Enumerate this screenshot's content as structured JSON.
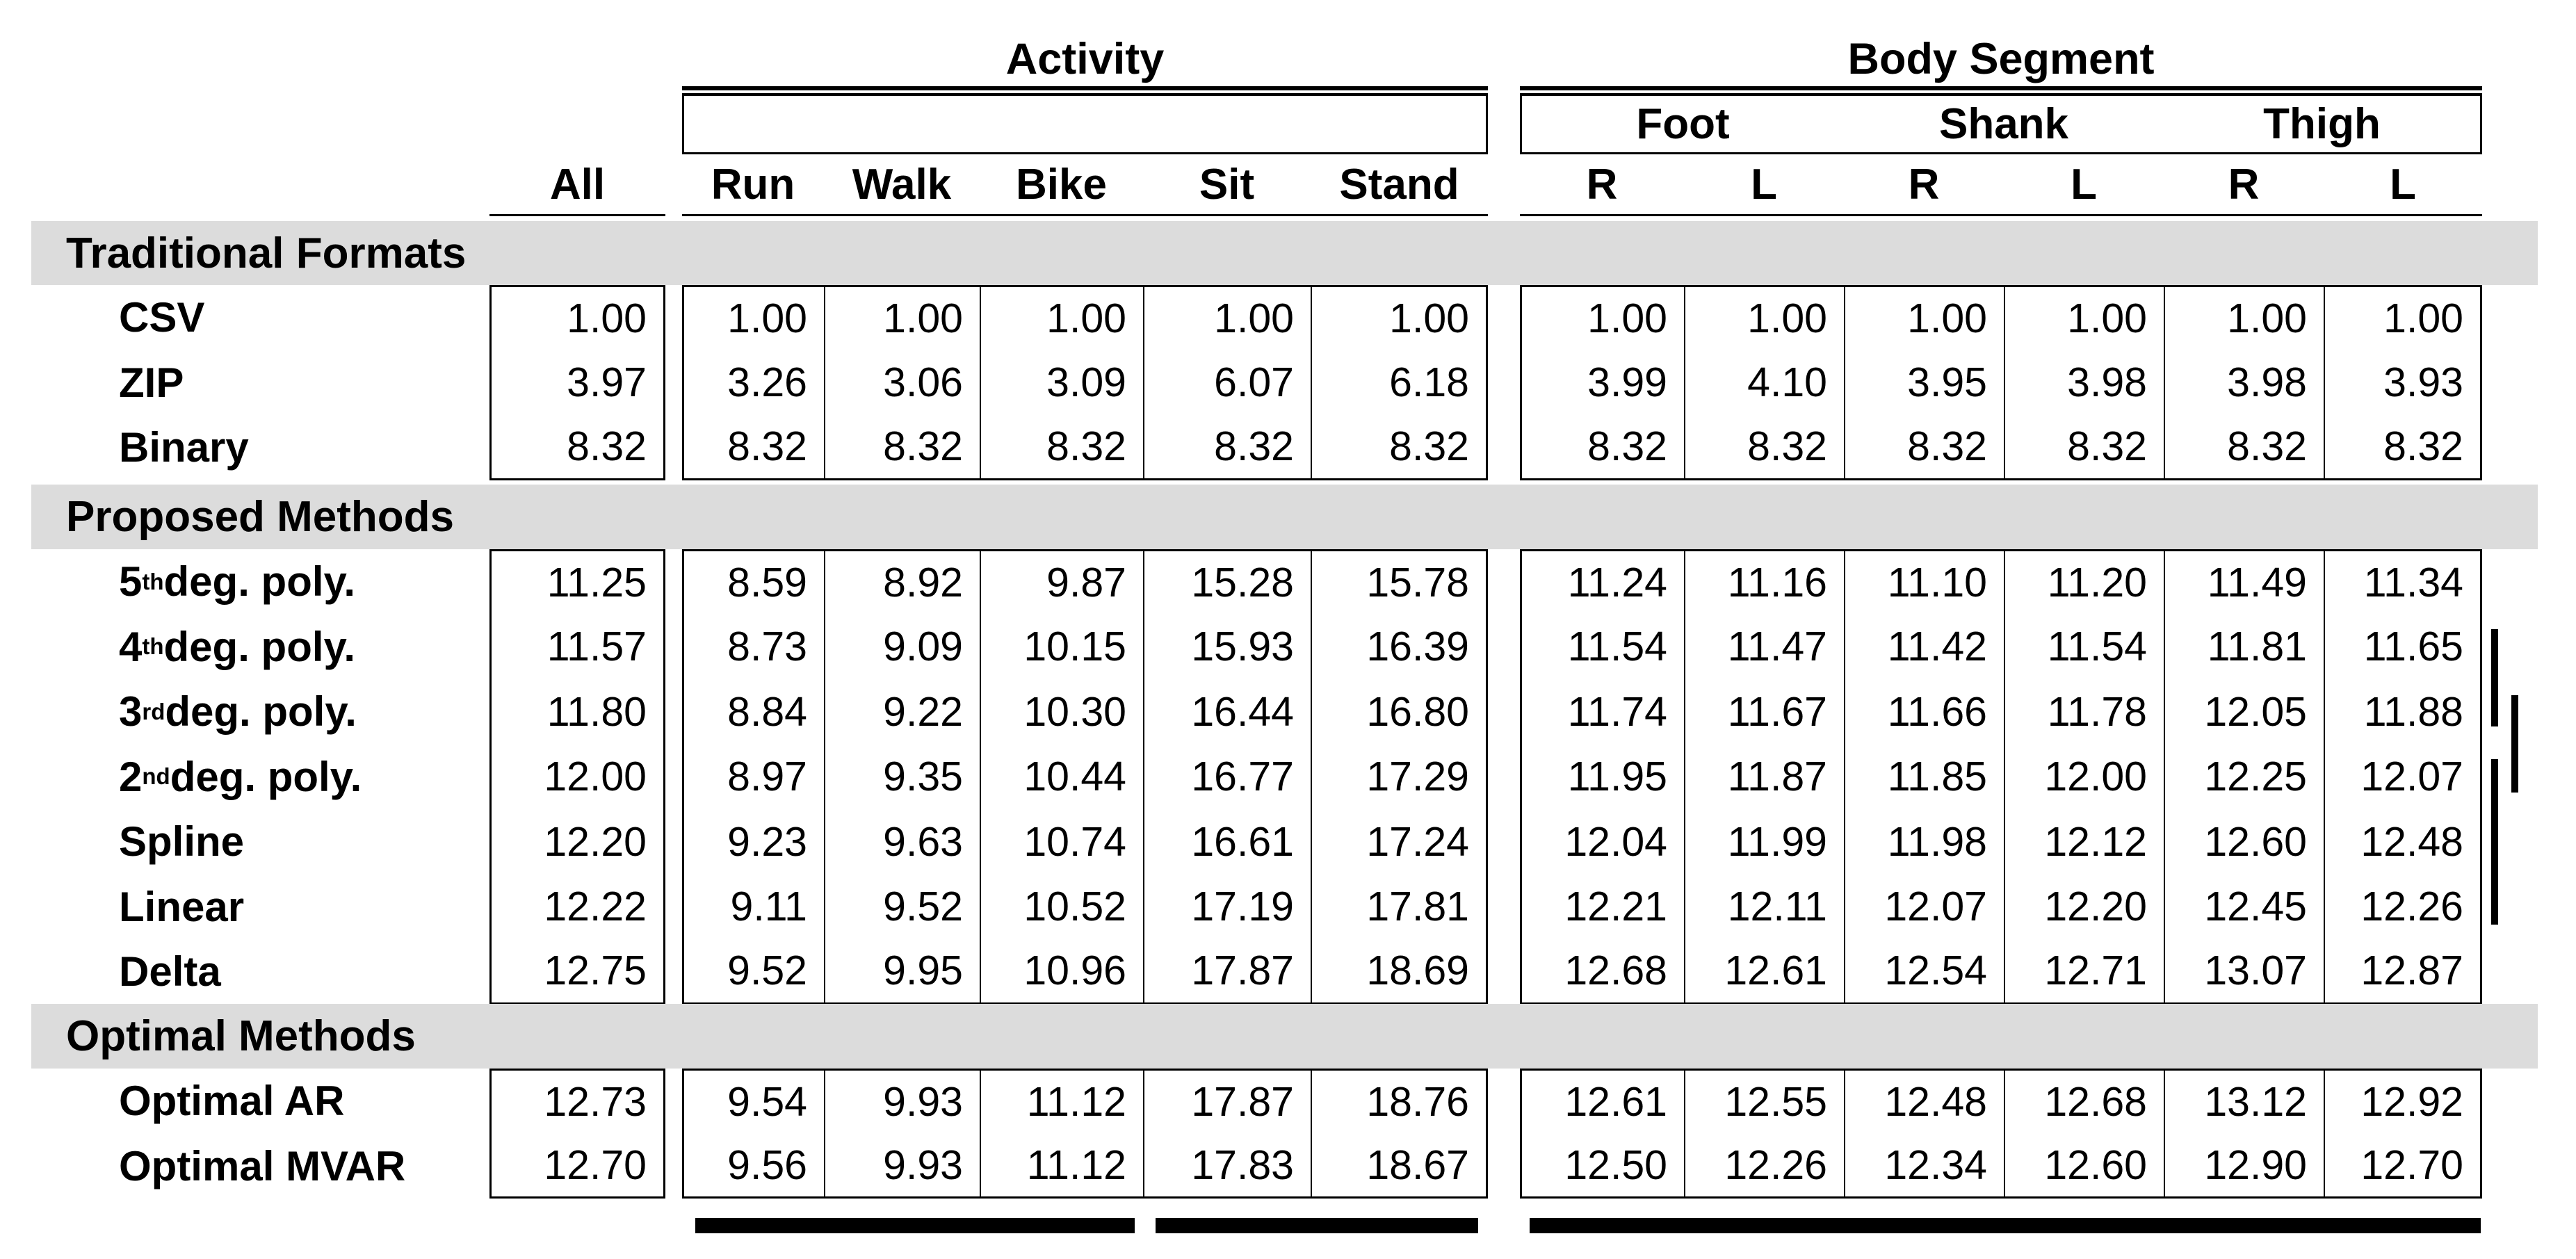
{
  "table": {
    "groups": {
      "activity": "Activity",
      "body_segment": "Body Segment"
    },
    "subgroups": [
      "Foot",
      "Shank",
      "Thigh"
    ],
    "columns": [
      "All",
      "Run",
      "Walk",
      "Bike",
      "Sit",
      "Stand",
      "R",
      "L",
      "R",
      "L",
      "R",
      "L"
    ],
    "sections": [
      {
        "header": "Traditional Formats",
        "rows": [
          {
            "label": {
              "base": "CSV",
              "sup": "",
              "rest": ""
            },
            "values": [
              "1.00",
              "1.00",
              "1.00",
              "1.00",
              "1.00",
              "1.00",
              "1.00",
              "1.00",
              "1.00",
              "1.00",
              "1.00",
              "1.00"
            ]
          },
          {
            "label": {
              "base": "ZIP",
              "sup": "",
              "rest": ""
            },
            "values": [
              "3.97",
              "3.26",
              "3.06",
              "3.09",
              "6.07",
              "6.18",
              "3.99",
              "4.10",
              "3.95",
              "3.98",
              "3.98",
              "3.93"
            ]
          },
          {
            "label": {
              "base": "Binary",
              "sup": "",
              "rest": ""
            },
            "values": [
              "8.32",
              "8.32",
              "8.32",
              "8.32",
              "8.32",
              "8.32",
              "8.32",
              "8.32",
              "8.32",
              "8.32",
              "8.32",
              "8.32"
            ]
          }
        ]
      },
      {
        "header": "Proposed Methods",
        "rows": [
          {
            "label": {
              "base": "5",
              "sup": "th",
              "rest": " deg. poly."
            },
            "values": [
              "11.25",
              "8.59",
              "8.92",
              "9.87",
              "15.28",
              "15.78",
              "11.24",
              "11.16",
              "11.10",
              "11.20",
              "11.49",
              "11.34"
            ]
          },
          {
            "label": {
              "base": "4",
              "sup": "th",
              "rest": " deg. poly."
            },
            "values": [
              "11.57",
              "8.73",
              "9.09",
              "10.15",
              "15.93",
              "16.39",
              "11.54",
              "11.47",
              "11.42",
              "11.54",
              "11.81",
              "11.65"
            ]
          },
          {
            "label": {
              "base": "3",
              "sup": "rd",
              "rest": " deg. poly."
            },
            "values": [
              "11.80",
              "8.84",
              "9.22",
              "10.30",
              "16.44",
              "16.80",
              "11.74",
              "11.67",
              "11.66",
              "11.78",
              "12.05",
              "11.88"
            ]
          },
          {
            "label": {
              "base": "2",
              "sup": "nd",
              "rest": " deg. poly."
            },
            "values": [
              "12.00",
              "8.97",
              "9.35",
              "10.44",
              "16.77",
              "17.29",
              "11.95",
              "11.87",
              "11.85",
              "12.00",
              "12.25",
              "12.07"
            ]
          },
          {
            "label": {
              "base": "Spline",
              "sup": "",
              "rest": ""
            },
            "values": [
              "12.20",
              "9.23",
              "9.63",
              "10.74",
              "16.61",
              "17.24",
              "12.04",
              "11.99",
              "11.98",
              "12.12",
              "12.60",
              "12.48"
            ]
          },
          {
            "label": {
              "base": "Linear",
              "sup": "",
              "rest": ""
            },
            "values": [
              "12.22",
              "9.11",
              "9.52",
              "10.52",
              "17.19",
              "17.81",
              "12.21",
              "12.11",
              "12.07",
              "12.20",
              "12.45",
              "12.26"
            ]
          },
          {
            "label": {
              "base": "Delta",
              "sup": "",
              "rest": ""
            },
            "values": [
              "12.75",
              "9.52",
              "9.95",
              "10.96",
              "17.87",
              "18.69",
              "12.68",
              "12.61",
              "12.54",
              "12.71",
              "13.07",
              "12.87"
            ]
          }
        ]
      },
      {
        "header": "Optimal Methods",
        "rows": [
          {
            "label": {
              "base": "Optimal AR",
              "sup": "",
              "rest": ""
            },
            "values": [
              "12.73",
              "9.54",
              "9.93",
              "11.12",
              "17.87",
              "18.76",
              "12.61",
              "12.55",
              "12.48",
              "12.68",
              "13.12",
              "12.92"
            ]
          },
          {
            "label": {
              "base": "Optimal MVAR",
              "sup": "",
              "rest": ""
            },
            "values": [
              "12.70",
              "9.56",
              "9.93",
              "11.12",
              "17.83",
              "18.67",
              "12.50",
              "12.26",
              "12.34",
              "12.60",
              "12.90",
              "12.70"
            ]
          }
        ]
      }
    ]
  },
  "colors": {
    "band": "#dcdcdc",
    "line": "#000000",
    "background": "#ffffff"
  },
  "marks": {
    "side_bars": [
      "sig-bar-poly4-poly3",
      "sig-bar-poly3-poly2",
      "sig-bar-poly2-linear"
    ],
    "bottom_bars": [
      "underline-run-walk-bike",
      "underline-sit-stand",
      "underline-body-segment"
    ]
  }
}
